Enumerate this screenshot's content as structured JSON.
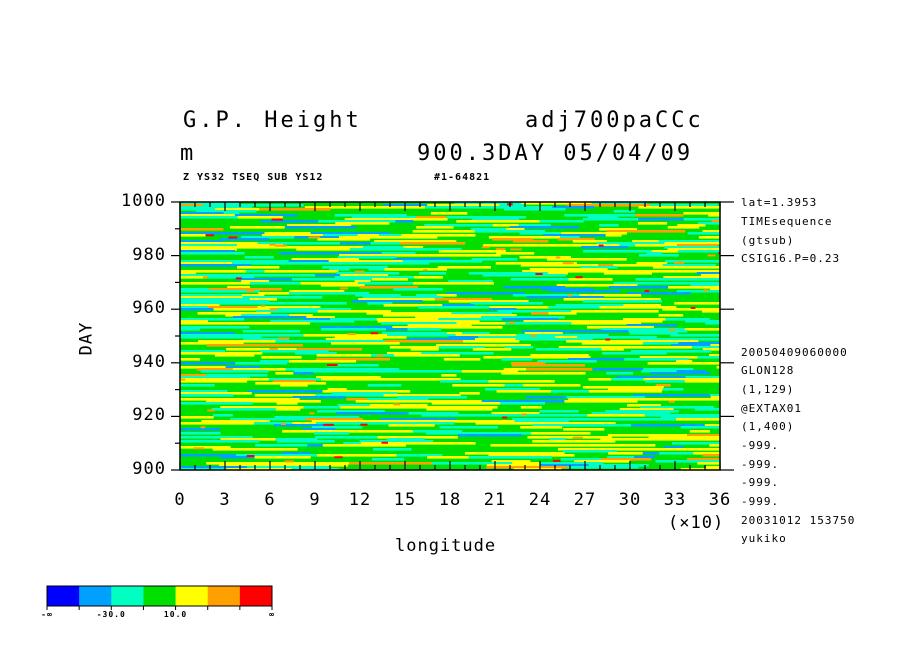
{
  "header": {
    "title_left": "G.P. Height",
    "title_right": "adj700paCCc",
    "unit": "m",
    "time_info": "900.3DAY 05/04/09",
    "sub_left": "Z YS32 TSEQ SUB YS12",
    "sub_right": "#1-64821"
  },
  "side_info": {
    "top": [
      "lat=1.3953",
      "TIMEsequence",
      "(gtsub)",
      "CSIG16.P=0.23"
    ],
    "bottom": [
      "20050409060000",
      "GLON128",
      "(1,129)",
      "@EXTAX01",
      "(1,400)",
      "-999.",
      "-999.",
      "-999.",
      "-999.",
      "20031012 153750",
      "yukiko"
    ]
  },
  "chart_data": {
    "type": "heatmap",
    "xlabel": "longitude",
    "ylabel": "DAY",
    "x_multiplier": "(×10)",
    "xlim": [
      0,
      36
    ],
    "ylim": [
      900,
      1000
    ],
    "x_ticks": [
      "0",
      "3",
      "6",
      "9",
      "12",
      "15",
      "18",
      "21",
      "24",
      "27",
      "30",
      "33",
      "36"
    ],
    "y_ticks": [
      "900",
      "920",
      "940",
      "960",
      "980",
      "1000"
    ],
    "colorbar": {
      "colors": [
        "#0000ff",
        "#00a0ff",
        "#00ffc0",
        "#00e000",
        "#ffff00",
        "#ffa000",
        "#ff0000"
      ],
      "labels": [
        "-∞",
        "-30.0",
        "10.0",
        "∞"
      ]
    }
  }
}
